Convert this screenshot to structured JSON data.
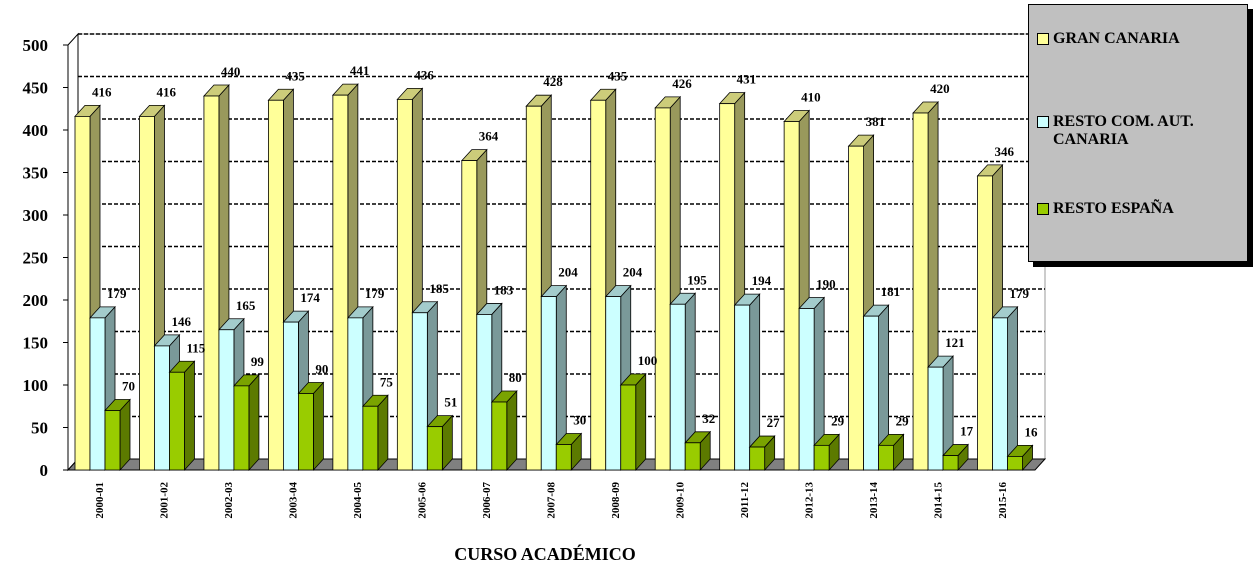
{
  "chart_data": {
    "type": "bar3d",
    "x_label": "CURSO ACADÉMICO",
    "categories": [
      "2000-01",
      "2001-02",
      "2002-03",
      "2003-04",
      "2004-05",
      "2005-06",
      "2006-07",
      "2007-08",
      "2008-09",
      "2009-10",
      "2011-12",
      "2012-13",
      "2013-14",
      "2014-15",
      "2015-16"
    ],
    "series": [
      {
        "name": "GRAN CANARIA",
        "color": "#ffff99",
        "values": [
          416,
          416,
          440,
          435,
          441,
          436,
          364,
          428,
          435,
          426,
          431,
          410,
          381,
          420,
          346
        ]
      },
      {
        "name": "RESTO COM. AUT. CANARIA",
        "color": "#ccffff",
        "values": [
          179,
          146,
          165,
          174,
          179,
          185,
          183,
          204,
          204,
          195,
          194,
          190,
          181,
          121,
          179
        ]
      },
      {
        "name": "RESTO ESPAÑA",
        "color": "#99cc00",
        "values": [
          70,
          115,
          99,
          90,
          75,
          51,
          80,
          30,
          100,
          32,
          27,
          29,
          29,
          17,
          16
        ]
      }
    ],
    "ylim": [
      0,
      500
    ],
    "yticks": [
      0,
      50,
      100,
      150,
      200,
      250,
      300,
      350,
      400,
      450,
      500
    ],
    "grid": true
  }
}
